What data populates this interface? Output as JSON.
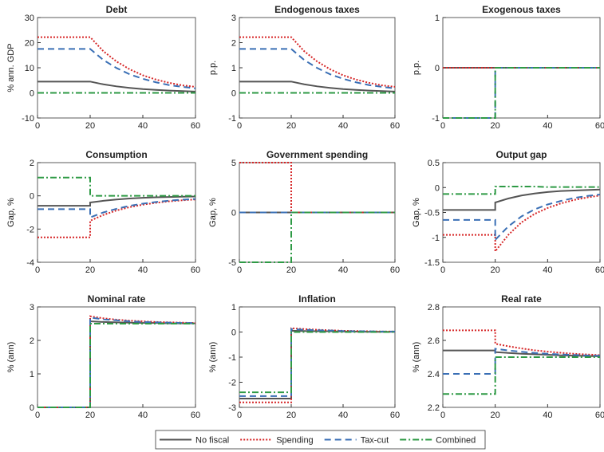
{
  "chart_data": [
    {
      "type": "line",
      "title": "Debt",
      "ylabel": "% ann. GDP",
      "x": [
        0,
        20,
        20,
        25,
        30,
        35,
        40,
        45,
        50,
        55,
        60
      ],
      "xlim": [
        0,
        60
      ],
      "xticks": [
        0,
        20,
        40,
        60
      ],
      "ylim": [
        -10,
        30
      ],
      "yticks": [
        -10,
        0,
        10,
        20,
        30
      ],
      "series": [
        {
          "name": "No fiscal",
          "color": "#555555",
          "values": [
            4.5,
            4.5,
            4.5,
            3.4,
            2.6,
            2.0,
            1.5,
            1.2,
            0.9,
            0.7,
            0.5
          ]
        },
        {
          "name": "Spending",
          "color": "#d62728",
          "values": [
            22.2,
            22.2,
            22.2,
            16.6,
            12.5,
            9.4,
            7.0,
            5.3,
            4.0,
            3.0,
            2.4
          ]
        },
        {
          "name": "Tax-cut",
          "color": "#3a6fb5",
          "values": [
            17.5,
            17.5,
            17.5,
            13.1,
            9.9,
            7.4,
            5.6,
            4.2,
            3.1,
            2.4,
            1.8
          ]
        },
        {
          "name": "Combined",
          "color": "#2e9a45",
          "values": [
            0,
            0,
            0,
            0,
            0,
            0,
            0,
            0,
            0,
            0,
            0
          ]
        }
      ]
    },
    {
      "type": "line",
      "title": "Endogenous taxes",
      "ylabel": "p.p.",
      "x": [
        0,
        20,
        20,
        25,
        30,
        35,
        40,
        45,
        50,
        55,
        60
      ],
      "xlim": [
        0,
        60
      ],
      "xticks": [
        0,
        20,
        40,
        60
      ],
      "ylim": [
        -1,
        3
      ],
      "yticks": [
        -1,
        0,
        1,
        2,
        3
      ],
      "series": [
        {
          "color": "#555555",
          "values": [
            0.45,
            0.45,
            0.45,
            0.34,
            0.26,
            0.2,
            0.15,
            0.12,
            0.09,
            0.07,
            0.05
          ]
        },
        {
          "color": "#d62728",
          "values": [
            2.22,
            2.22,
            2.22,
            1.66,
            1.25,
            0.94,
            0.7,
            0.53,
            0.4,
            0.3,
            0.24
          ]
        },
        {
          "color": "#3a6fb5",
          "values": [
            1.75,
            1.75,
            1.75,
            1.31,
            0.99,
            0.74,
            0.56,
            0.42,
            0.31,
            0.24,
            0.18
          ]
        },
        {
          "color": "#2e9a45",
          "values": [
            0,
            0,
            0,
            0,
            0,
            0,
            0,
            0,
            0,
            0,
            0
          ]
        }
      ]
    },
    {
      "type": "line",
      "title": "Exogenous taxes",
      "ylabel": "p.p.",
      "x": [
        0,
        20,
        20,
        25,
        30,
        35,
        40,
        45,
        50,
        55,
        60
      ],
      "xlim": [
        0,
        60
      ],
      "xticks": [
        0,
        20,
        40,
        60
      ],
      "ylim": [
        -1,
        1
      ],
      "yticks": [
        -1,
        0,
        1
      ],
      "series": [
        {
          "color": "#555555",
          "values": [
            0,
            0,
            0,
            0,
            0,
            0,
            0,
            0,
            0,
            0,
            0
          ]
        },
        {
          "color": "#d62728",
          "values": [
            0,
            0,
            0,
            0,
            0,
            0,
            0,
            0,
            0,
            0,
            0
          ]
        },
        {
          "color": "#3a6fb5",
          "values": [
            -1,
            -1,
            0,
            0,
            0,
            0,
            0,
            0,
            0,
            0,
            0
          ]
        },
        {
          "color": "#2e9a45",
          "values": [
            -1,
            -1,
            0,
            0,
            0,
            0,
            0,
            0,
            0,
            0,
            0
          ]
        }
      ]
    },
    {
      "type": "line",
      "title": "Consumption",
      "ylabel": "Gap, %",
      "x": [
        0,
        20,
        20,
        25,
        30,
        35,
        40,
        45,
        50,
        55,
        60
      ],
      "xlim": [
        0,
        60
      ],
      "xticks": [
        0,
        20,
        40,
        60
      ],
      "ylim": [
        -4,
        2
      ],
      "yticks": [
        -4,
        -2,
        0,
        2
      ],
      "series": [
        {
          "color": "#555555",
          "values": [
            -0.6,
            -0.6,
            -0.4,
            -0.3,
            -0.22,
            -0.16,
            -0.12,
            -0.09,
            -0.07,
            -0.05,
            -0.04
          ]
        },
        {
          "color": "#d62728",
          "values": [
            -2.5,
            -2.5,
            -1.5,
            -1.15,
            -0.88,
            -0.68,
            -0.53,
            -0.42,
            -0.33,
            -0.27,
            -0.22
          ]
        },
        {
          "color": "#3a6fb5",
          "values": [
            -0.8,
            -0.8,
            -1.3,
            -1.0,
            -0.78,
            -0.6,
            -0.47,
            -0.37,
            -0.29,
            -0.23,
            -0.19
          ]
        },
        {
          "color": "#2e9a45",
          "values": [
            1.1,
            1.1,
            0,
            0,
            0,
            0,
            0,
            0,
            0,
            0,
            0
          ]
        }
      ]
    },
    {
      "type": "line",
      "title": "Government spending",
      "ylabel": "Gap, %",
      "x": [
        0,
        20,
        20,
        25,
        30,
        35,
        40,
        45,
        50,
        55,
        60
      ],
      "xlim": [
        0,
        60
      ],
      "xticks": [
        0,
        20,
        40,
        60
      ],
      "ylim": [
        -5,
        5
      ],
      "yticks": [
        -5,
        0,
        5
      ],
      "series": [
        {
          "color": "#555555",
          "values": [
            0,
            0,
            0,
            0,
            0,
            0,
            0,
            0,
            0,
            0,
            0
          ]
        },
        {
          "color": "#d62728",
          "values": [
            5,
            5,
            0,
            0,
            0,
            0,
            0,
            0,
            0,
            0,
            0
          ]
        },
        {
          "color": "#3a6fb5",
          "values": [
            0,
            0,
            0,
            0,
            0,
            0,
            0,
            0,
            0,
            0,
            0
          ]
        },
        {
          "color": "#2e9a45",
          "values": [
            -5,
            -5,
            0,
            0,
            0,
            0,
            0,
            0,
            0,
            0,
            0
          ]
        }
      ]
    },
    {
      "type": "line",
      "title": "Output gap",
      "ylabel": "Gap, %",
      "x": [
        0,
        20,
        20,
        25,
        30,
        35,
        40,
        45,
        50,
        55,
        60
      ],
      "xlim": [
        0,
        60
      ],
      "xticks": [
        0,
        20,
        40,
        60
      ],
      "ylim": [
        -1.5,
        0.5
      ],
      "yticks": [
        -1.5,
        -1,
        -0.5,
        0,
        0.5
      ],
      "series": [
        {
          "color": "#555555",
          "values": [
            -0.45,
            -0.45,
            -0.3,
            -0.22,
            -0.16,
            -0.12,
            -0.09,
            -0.07,
            -0.06,
            -0.05,
            -0.04
          ]
        },
        {
          "color": "#d62728",
          "values": [
            -0.95,
            -0.95,
            -1.28,
            -0.95,
            -0.7,
            -0.53,
            -0.41,
            -0.32,
            -0.25,
            -0.2,
            -0.16
          ]
        },
        {
          "color": "#3a6fb5",
          "values": [
            -0.65,
            -0.65,
            -1.05,
            -0.78,
            -0.58,
            -0.44,
            -0.34,
            -0.27,
            -0.21,
            -0.17,
            -0.14
          ]
        },
        {
          "color": "#2e9a45",
          "values": [
            -0.13,
            -0.13,
            0.02,
            0.02,
            0.02,
            0.02,
            0.01,
            0.01,
            0.01,
            0.01,
            0.01
          ]
        }
      ]
    },
    {
      "type": "line",
      "title": "Nominal rate",
      "ylabel": "% (ann)",
      "x": [
        0,
        20,
        20,
        25,
        30,
        35,
        40,
        45,
        50,
        55,
        60
      ],
      "xlim": [
        0,
        60
      ],
      "xticks": [
        0,
        20,
        40,
        60
      ],
      "ylim": [
        0,
        3
      ],
      "yticks": [
        0,
        1,
        2,
        3
      ],
      "series": [
        {
          "color": "#555555",
          "values": [
            0,
            0,
            2.57,
            2.55,
            2.54,
            2.53,
            2.52,
            2.52,
            2.51,
            2.51,
            2.51
          ]
        },
        {
          "color": "#d62728",
          "values": [
            0,
            0,
            2.72,
            2.66,
            2.62,
            2.59,
            2.57,
            2.55,
            2.54,
            2.53,
            2.52
          ]
        },
        {
          "color": "#3a6fb5",
          "values": [
            0,
            0,
            2.68,
            2.63,
            2.6,
            2.57,
            2.55,
            2.54,
            2.53,
            2.52,
            2.52
          ]
        },
        {
          "color": "#2e9a45",
          "values": [
            0,
            0,
            2.5,
            2.5,
            2.5,
            2.5,
            2.5,
            2.5,
            2.5,
            2.5,
            2.5
          ]
        }
      ]
    },
    {
      "type": "line",
      "title": "Inflation",
      "ylabel": "% (ann)",
      "x": [
        0,
        20,
        20,
        25,
        30,
        35,
        40,
        45,
        50,
        55,
        60
      ],
      "xlim": [
        0,
        60
      ],
      "xticks": [
        0,
        20,
        40,
        60
      ],
      "ylim": [
        -3,
        1
      ],
      "yticks": [
        -3,
        -2,
        -1,
        0,
        1
      ],
      "series": [
        {
          "color": "#555555",
          "values": [
            -2.65,
            -2.65,
            0.05,
            0.04,
            0.03,
            0.03,
            0.02,
            0.02,
            0.01,
            0.01,
            0.01
          ]
        },
        {
          "color": "#d62728",
          "values": [
            -2.8,
            -2.8,
            0.15,
            0.12,
            0.09,
            0.07,
            0.05,
            0.04,
            0.03,
            0.02,
            0.02
          ]
        },
        {
          "color": "#3a6fb5",
          "values": [
            -2.55,
            -2.55,
            0.12,
            0.09,
            0.07,
            0.06,
            0.04,
            0.03,
            0.03,
            0.02,
            0.02
          ]
        },
        {
          "color": "#2e9a45",
          "values": [
            -2.4,
            -2.4,
            0,
            0,
            0,
            0,
            0,
            0,
            0,
            0,
            0
          ]
        }
      ]
    },
    {
      "type": "line",
      "title": "Real rate",
      "ylabel": "% (ann)",
      "x": [
        0,
        20,
        20,
        25,
        30,
        35,
        40,
        45,
        50,
        55,
        60
      ],
      "xlim": [
        0,
        60
      ],
      "xticks": [
        0,
        20,
        40,
        60
      ],
      "ylim": [
        2.2,
        2.8
      ],
      "yticks": [
        2.2,
        2.4,
        2.6,
        2.8
      ],
      "series": [
        {
          "color": "#555555",
          "values": [
            2.54,
            2.54,
            2.53,
            2.525,
            2.52,
            2.517,
            2.514,
            2.511,
            2.509,
            2.507,
            2.505
          ]
        },
        {
          "color": "#d62728",
          "values": [
            2.66,
            2.66,
            2.58,
            2.565,
            2.552,
            2.541,
            2.533,
            2.526,
            2.52,
            2.516,
            2.512
          ]
        },
        {
          "color": "#3a6fb5",
          "values": [
            2.4,
            2.4,
            2.55,
            2.54,
            2.532,
            2.525,
            2.52,
            2.516,
            2.513,
            2.51,
            2.508
          ]
        },
        {
          "color": "#2e9a45",
          "values": [
            2.28,
            2.28,
            2.5,
            2.5,
            2.5,
            2.5,
            2.5,
            2.5,
            2.5,
            2.5,
            2.5
          ]
        }
      ]
    }
  ]
}
